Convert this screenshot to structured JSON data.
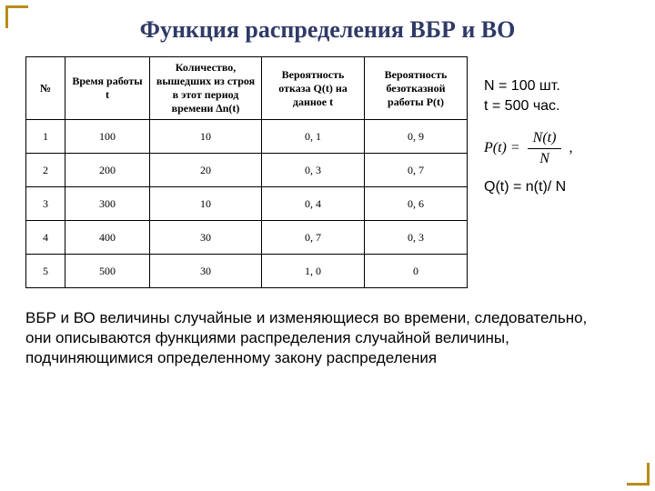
{
  "title": "Функция распределения ВБР и ВО",
  "table": {
    "columns": [
      "№",
      "Время работы t",
      "Количество, вышедших из строя в этот период времени ∆n(t)",
      "Вероятность отказа Q(t) на данное t",
      "Вероятность безотказной работы P(t)"
    ],
    "rows": [
      [
        "1",
        "100",
        "10",
        "0, 1",
        "0, 9"
      ],
      [
        "2",
        "200",
        "20",
        "0, 3",
        "0, 7"
      ],
      [
        "3",
        "300",
        "10",
        "0, 4",
        "0, 6"
      ],
      [
        "4",
        "400",
        "30",
        "0, 7",
        "0, 3"
      ],
      [
        "5",
        "500",
        "30",
        "1, 0",
        "0"
      ]
    ],
    "border_color": "#000000",
    "header_fontweight": "bold",
    "fontsize": 12
  },
  "side": {
    "param1": "N = 100 шт.",
    "param2": "t = 500 час.",
    "formula_pt_lhs": "P(t) =",
    "formula_pt_num": "N(t)",
    "formula_pt_den": "N",
    "formula_pt_tail": ",",
    "formula_q": "Q(t) =  n(t)/ N"
  },
  "footer": "ВБР и ВО величины случайные и изменяющиеся во времени, следовательно, они описываются функциями распределения случайной величины, подчиняющимися определенному закону распределения",
  "colors": {
    "title": "#2f3a66",
    "corner": "#b88c1a",
    "text": "#000000",
    "background": "#ffffff"
  }
}
